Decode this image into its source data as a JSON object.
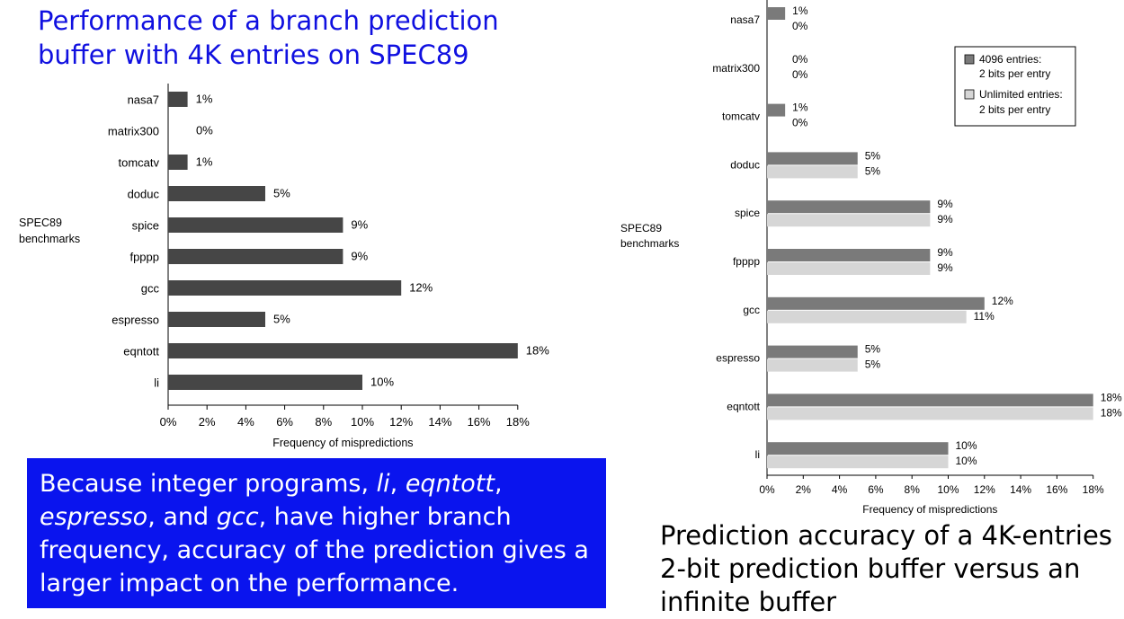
{
  "left_title": "Performance of a branch prediction buffer with 4K entries on SPEC89",
  "right_caption": "Prediction accuracy of a 4K-entries 2-bit prediction buffer versus an infinite buffer",
  "note": {
    "p1": "Because integer programs, ",
    "li": "li",
    "c1": ", ",
    "eqntott": "eqntott",
    "c2": ", ",
    "espresso": "espresso",
    "p2": ", and ",
    "gcc": "gcc",
    "p3": ", have higher branch frequency, accuracy of the prediction gives a larger impact on the performance."
  },
  "colors": {
    "bar_dark": "#464646",
    "bar_mid": "#7a7a7a",
    "bar_light": "#d6d6d6",
    "note_bg": "#0a14ee",
    "title_blue": "#1010e0"
  },
  "chart_data": [
    {
      "type": "bar",
      "orientation": "horizontal",
      "ylabel": "SPEC89 benchmarks",
      "xlabel": "Frequency of mispredictions",
      "xlim": [
        0,
        18
      ],
      "xticks": [
        "0%",
        "2%",
        "4%",
        "6%",
        "8%",
        "10%",
        "12%",
        "14%",
        "16%",
        "18%"
      ],
      "categories": [
        "nasa7",
        "matrix300",
        "tomcatv",
        "doduc",
        "spice",
        "fpppp",
        "gcc",
        "espresso",
        "eqntott",
        "li"
      ],
      "series": [
        {
          "values": [
            1,
            0,
            1,
            5,
            9,
            9,
            12,
            5,
            18,
            10
          ],
          "labels": [
            "1%",
            "0%",
            "1%",
            "5%",
            "9%",
            "9%",
            "12%",
            "5%",
            "18%",
            "10%"
          ]
        }
      ]
    },
    {
      "type": "bar",
      "orientation": "horizontal",
      "ylabel": "SPEC89 benchmarks",
      "xlabel": "Frequency of mispredictions",
      "xlim": [
        0,
        18
      ],
      "xticks": [
        "0%",
        "2%",
        "4%",
        "6%",
        "8%",
        "10%",
        "12%",
        "14%",
        "16%",
        "18%"
      ],
      "legend_position": "top-right",
      "categories": [
        "nasa7",
        "matrix300",
        "tomcatv",
        "doduc",
        "spice",
        "fpppp",
        "gcc",
        "espresso",
        "eqntott",
        "li"
      ],
      "series": [
        {
          "name_line1": "4096 entries:",
          "name_line2": "2 bits per entry",
          "values": [
            1,
            0,
            1,
            5,
            9,
            9,
            12,
            5,
            18,
            10
          ],
          "labels": [
            "1%",
            "0%",
            "1%",
            "5%",
            "9%",
            "9%",
            "12%",
            "5%",
            "18%",
            "10%"
          ]
        },
        {
          "name_line1": "Unlimited entries:",
          "name_line2": "2 bits per entry",
          "values": [
            0,
            0,
            0,
            5,
            9,
            9,
            11,
            5,
            18,
            10
          ],
          "labels": [
            "0%",
            "0%",
            "0%",
            "5%",
            "9%",
            "9%",
            "11%",
            "5%",
            "18%",
            "10%"
          ]
        }
      ]
    }
  ]
}
